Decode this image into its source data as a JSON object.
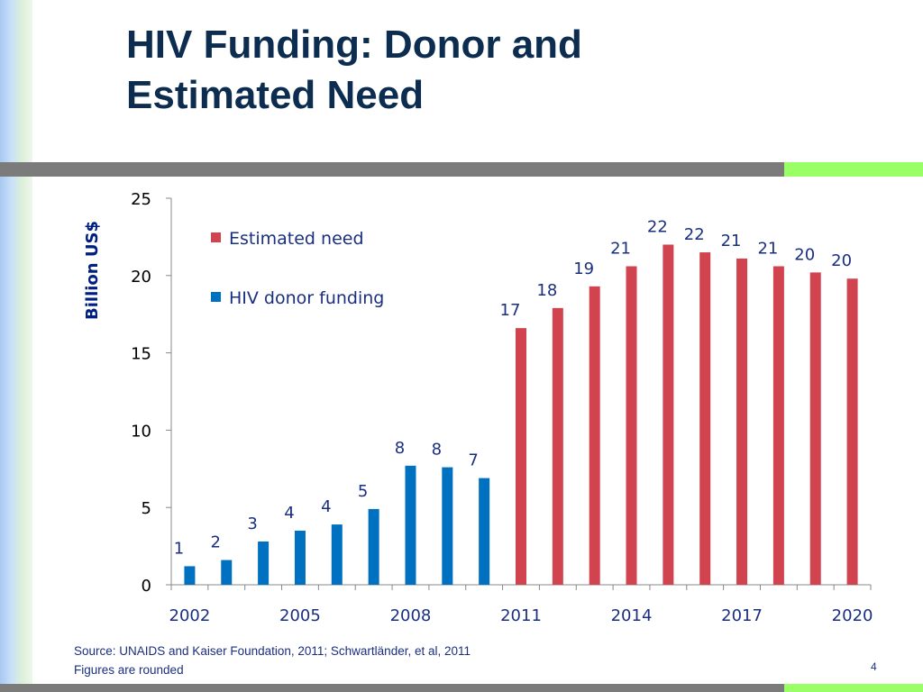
{
  "slide": {
    "title_line1": "HIV Funding: Donor and",
    "title_line2": "Estimated Need",
    "source": "Source: UNAIDS and Kaiser Foundation, 2011; Schwartländer, et al, 2011",
    "note": "Figures are rounded",
    "page_number": "4"
  },
  "colors": {
    "title": "#0c2d4f",
    "donor": "#0070c0",
    "need": "#d0434f",
    "text": "#1a2f80",
    "ylabel": "#002080",
    "rule": "#7b7b7b",
    "accent": "#99ff66"
  },
  "chart_data": {
    "type": "bar",
    "ylabel": "Billion US$",
    "ylim": [
      0,
      25
    ],
    "yticks": [
      0,
      5,
      10,
      15,
      20,
      25
    ],
    "xticks": [
      "2002",
      "2005",
      "2008",
      "2011",
      "2014",
      "2017",
      "2020"
    ],
    "legend": "top-left",
    "legend_order": [
      "need",
      "donor"
    ],
    "grid": false,
    "series": [
      {
        "key": "donor",
        "name": "HIV donor funding",
        "x": [
          2002,
          2003,
          2004,
          2005,
          2006,
          2007,
          2008,
          2009,
          2010
        ],
        "values": [
          1.2,
          1.6,
          2.8,
          3.5,
          3.9,
          4.9,
          7.7,
          7.6,
          6.9
        ],
        "labels": [
          "1",
          "2",
          "3",
          "4",
          "4",
          "5",
          "8",
          "8",
          "7"
        ]
      },
      {
        "key": "need",
        "name": "Estimated need",
        "x": [
          2011,
          2012,
          2013,
          2014,
          2015,
          2016,
          2017,
          2018,
          2019,
          2020
        ],
        "values": [
          16.6,
          17.9,
          19.3,
          20.6,
          22.0,
          21.5,
          21.1,
          20.6,
          20.2,
          19.8
        ],
        "labels": [
          "17",
          "18",
          "19",
          "21",
          "22",
          "22",
          "21",
          "21",
          "20",
          "20"
        ]
      }
    ]
  }
}
